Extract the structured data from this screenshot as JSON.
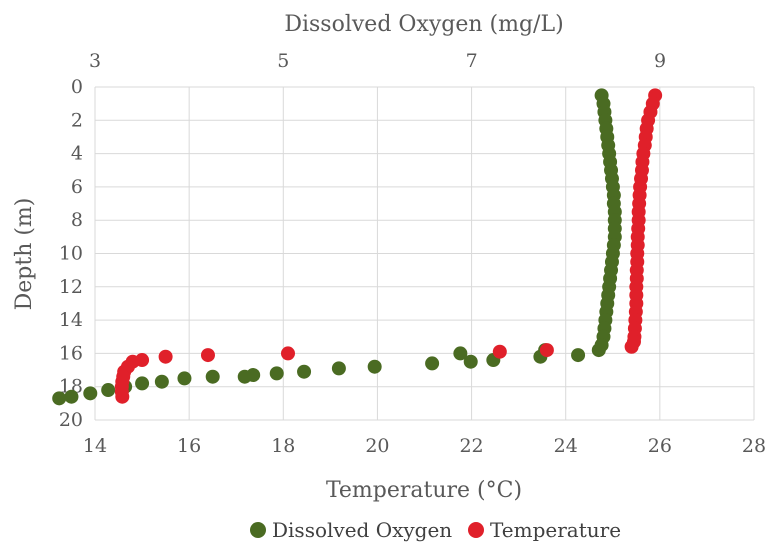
{
  "chart_data": {
    "type": "scatter",
    "title": "",
    "xlabel_bottom": "Temperature (°C)",
    "xlabel_top": "Dissolved Oxygen (mg/L)",
    "ylabel": "Depth (m)",
    "x_bottom_lim": [
      14,
      28
    ],
    "x_bottom_ticks": [
      "14",
      "16",
      "18",
      "20",
      "22",
      "24",
      "26",
      "28"
    ],
    "x_top_ticks": [
      "3",
      "5",
      "7",
      "9"
    ],
    "x_top_tick_values": [
      3,
      5,
      7,
      9
    ],
    "y_ticks": [
      "0",
      "2",
      "4",
      "6",
      "8",
      "10",
      "12",
      "14",
      "16",
      "18",
      "20"
    ],
    "ylim": [
      0,
      20
    ],
    "y_inverted": true,
    "grid": true,
    "legend_position": "bottom",
    "series": [
      {
        "name": "Dissolved Oxygen",
        "axis": "top",
        "color": "#4a6b22",
        "points": [
          [
            8.38,
            0.5
          ],
          [
            8.4,
            1.0
          ],
          [
            8.41,
            1.5
          ],
          [
            8.42,
            2.0
          ],
          [
            8.43,
            2.5
          ],
          [
            8.44,
            3.0
          ],
          [
            8.45,
            3.5
          ],
          [
            8.46,
            4.0
          ],
          [
            8.47,
            4.5
          ],
          [
            8.48,
            5.0
          ],
          [
            8.49,
            5.5
          ],
          [
            8.5,
            6.0
          ],
          [
            8.51,
            6.5
          ],
          [
            8.51,
            7.0
          ],
          [
            8.52,
            7.5
          ],
          [
            8.52,
            8.0
          ],
          [
            8.52,
            8.5
          ],
          [
            8.52,
            9.0
          ],
          [
            8.51,
            9.5
          ],
          [
            8.5,
            10.0
          ],
          [
            8.49,
            10.5
          ],
          [
            8.48,
            11.0
          ],
          [
            8.47,
            11.5
          ],
          [
            8.46,
            12.0
          ],
          [
            8.45,
            12.5
          ],
          [
            8.44,
            13.0
          ],
          [
            8.43,
            13.5
          ],
          [
            8.42,
            14.0
          ],
          [
            8.41,
            14.5
          ],
          [
            8.4,
            15.0
          ],
          [
            8.38,
            15.5
          ],
          [
            8.35,
            15.8
          ],
          [
            8.13,
            16.1
          ],
          [
            7.78,
            15.8
          ],
          [
            7.73,
            16.2
          ],
          [
            7.23,
            16.4
          ],
          [
            6.99,
            16.5
          ],
          [
            6.88,
            16.0
          ],
          [
            6.58,
            16.6
          ],
          [
            5.97,
            16.8
          ],
          [
            5.59,
            16.9
          ],
          [
            5.22,
            17.1
          ],
          [
            4.93,
            17.2
          ],
          [
            4.68,
            17.3
          ],
          [
            4.59,
            17.4
          ],
          [
            4.25,
            17.4
          ],
          [
            3.95,
            17.5
          ],
          [
            3.71,
            17.7
          ],
          [
            3.5,
            17.8
          ],
          [
            3.32,
            18.0
          ],
          [
            3.14,
            18.2
          ],
          [
            2.95,
            18.4
          ],
          [
            2.75,
            18.6
          ],
          [
            2.62,
            18.7
          ]
        ]
      },
      {
        "name": "Temperature",
        "axis": "bottom",
        "color": "#e0202a",
        "points": [
          [
            25.9,
            0.5
          ],
          [
            25.85,
            1.0
          ],
          [
            25.8,
            1.5
          ],
          [
            25.75,
            2.0
          ],
          [
            25.72,
            2.5
          ],
          [
            25.7,
            3.0
          ],
          [
            25.68,
            3.5
          ],
          [
            25.65,
            4.0
          ],
          [
            25.63,
            4.5
          ],
          [
            25.62,
            5.0
          ],
          [
            25.6,
            5.5
          ],
          [
            25.58,
            6.0
          ],
          [
            25.57,
            6.5
          ],
          [
            25.56,
            7.0
          ],
          [
            25.55,
            7.5
          ],
          [
            25.55,
            8.0
          ],
          [
            25.54,
            8.5
          ],
          [
            25.53,
            9.0
          ],
          [
            25.53,
            9.5
          ],
          [
            25.52,
            10.0
          ],
          [
            25.52,
            10.5
          ],
          [
            25.51,
            11.0
          ],
          [
            25.51,
            11.5
          ],
          [
            25.5,
            12.0
          ],
          [
            25.5,
            12.5
          ],
          [
            25.5,
            13.0
          ],
          [
            25.49,
            13.5
          ],
          [
            25.48,
            14.0
          ],
          [
            25.47,
            14.5
          ],
          [
            25.46,
            15.0
          ],
          [
            25.45,
            15.3
          ],
          [
            25.4,
            15.6
          ],
          [
            23.6,
            15.8
          ],
          [
            22.6,
            15.9
          ],
          [
            18.1,
            16.0
          ],
          [
            16.4,
            16.1
          ],
          [
            15.5,
            16.2
          ],
          [
            15.0,
            16.4
          ],
          [
            14.8,
            16.5
          ],
          [
            14.7,
            16.8
          ],
          [
            14.62,
            17.1
          ],
          [
            14.6,
            17.4
          ],
          [
            14.58,
            17.7
          ],
          [
            14.57,
            18.0
          ],
          [
            14.57,
            18.3
          ],
          [
            14.58,
            18.6
          ]
        ]
      }
    ]
  }
}
